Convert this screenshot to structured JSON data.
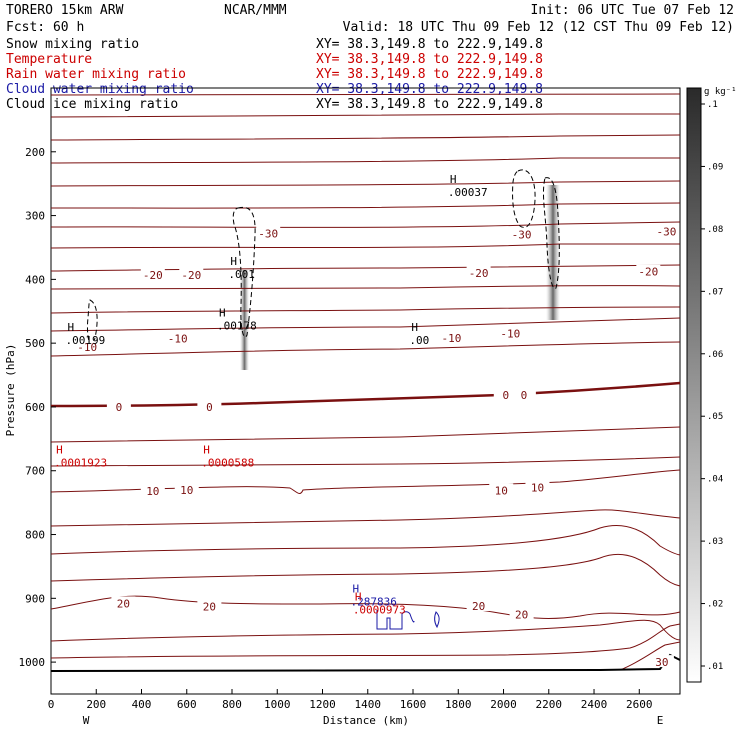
{
  "header": {
    "model": "TORERO  15km ARW",
    "org": "NCAR/MMM",
    "init": "Init: 06 UTC Tue 07 Feb 12",
    "fcst": "Fcst:   60 h",
    "valid": "Valid: 18 UTC Thu 09 Feb 12 (12 CST Thu 09 Feb 12)"
  },
  "fields": [
    {
      "name": "Snow mixing ratio",
      "xy": "XY=  38.3,149.8 to 222.9,149.8",
      "color": "#000000"
    },
    {
      "name": "Temperature",
      "xy": "XY=  38.3,149.8 to 222.9,149.8",
      "color": "#cc0000"
    },
    {
      "name": "Rain water mixing ratio",
      "xy": "XY=  38.3,149.8 to 222.9,149.8",
      "color": "#cc0000"
    },
    {
      "name": "Cloud water mixing ratio",
      "xy": "XY=  38.3,149.8 to 222.9,149.8",
      "color": "#1a1aa6"
    },
    {
      "name": "Cloud ice mixing ratio",
      "xy": "XY=  38.3,149.8 to 222.9,149.8",
      "color": "#000000"
    }
  ],
  "chart_data": {
    "type": "cross-section contour",
    "xlabel": "Distance (km)",
    "ylabel": "Pressure (hPa)",
    "xlim": [
      0,
      2780
    ],
    "ylim": [
      1050,
      100
    ],
    "xticks": [
      0,
      200,
      400,
      600,
      800,
      1000,
      1200,
      1400,
      1600,
      1800,
      2000,
      2200,
      2400,
      2600
    ],
    "yticks": [
      200,
      300,
      400,
      500,
      600,
      700,
      800,
      900,
      1000
    ],
    "end_labels": {
      "left": "W",
      "right": "E"
    },
    "colorbar": {
      "units": "g kg⁻¹",
      "ticks": [
        ".01",
        ".02",
        ".03",
        ".04",
        ".05",
        ".06",
        ".07",
        ".08",
        ".09",
        ".1"
      ]
    },
    "temperature_labels": [
      {
        "text": "-30",
        "x": 960,
        "p": 328
      },
      {
        "text": "-30",
        "x": 2080,
        "p": 330
      },
      {
        "text": "-30",
        "x": 2720,
        "p": 325
      },
      {
        "text": "-20",
        "x": 450,
        "p": 393
      },
      {
        "text": "-20",
        "x": 620,
        "p": 393
      },
      {
        "text": "-20",
        "x": 1890,
        "p": 390
      },
      {
        "text": "-20",
        "x": 2640,
        "p": 388
      },
      {
        "text": "-10",
        "x": 160,
        "p": 506
      },
      {
        "text": "-10",
        "x": 560,
        "p": 493
      },
      {
        "text": "-10",
        "x": 1770,
        "p": 492
      },
      {
        "text": "-10",
        "x": 2030,
        "p": 485
      },
      {
        "text": "0",
        "x": 300,
        "p": 600
      },
      {
        "text": "0",
        "x": 700,
        "p": 600
      },
      {
        "text": "0",
        "x": 2010,
        "p": 581
      },
      {
        "text": "0",
        "x": 2090,
        "p": 581
      },
      {
        "text": "10",
        "x": 450,
        "p": 732
      },
      {
        "text": "10",
        "x": 600,
        "p": 730
      },
      {
        "text": "10",
        "x": 1990,
        "p": 731
      },
      {
        "text": "10",
        "x": 2150,
        "p": 726
      },
      {
        "text": "20",
        "x": 320,
        "p": 908
      },
      {
        "text": "20",
        "x": 700,
        "p": 913
      },
      {
        "text": "20",
        "x": 1890,
        "p": 912
      },
      {
        "text": "20",
        "x": 2080,
        "p": 925
      },
      {
        "text": "30",
        "x": 2700,
        "p": 1000
      }
    ],
    "maxima": [
      {
        "text": ".00199",
        "x": 170,
        "p": 500,
        "color": "#000000"
      },
      {
        "text": ".00178",
        "x": 840,
        "p": 477,
        "color": "#000000"
      },
      {
        "text": ".001",
        "x": 890,
        "p": 396,
        "color": "#000000"
      },
      {
        "text": ".00",
        "x": 1690,
        "p": 500,
        "color": "#000000"
      },
      {
        "text": ".00037",
        "x": 1860,
        "p": 268,
        "color": "#000000"
      },
      {
        "text": ".0001923",
        "x": 120,
        "p": 692,
        "color": "#cc0000"
      },
      {
        "text": ".0000588",
        "x": 770,
        "p": 692,
        "color": "#cc0000"
      },
      {
        "text": ".287836",
        "x": 1430,
        "p": 910,
        "color": "#1a1aa6"
      },
      {
        "text": ".0000973",
        "x": 1440,
        "p": 922,
        "color": "#cc0000"
      }
    ]
  }
}
